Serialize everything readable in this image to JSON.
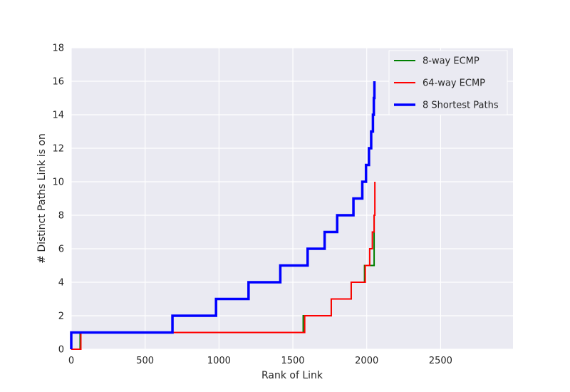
{
  "chart_data": {
    "type": "line",
    "title": "",
    "xlabel": "Rank of Link",
    "ylabel": "# Distinct Paths Link is on",
    "xlim": [
      0,
      2990
    ],
    "ylim": [
      0,
      18
    ],
    "xticks": [
      0,
      500,
      1000,
      1500,
      2000,
      2500
    ],
    "yticks": [
      0,
      2,
      4,
      6,
      8,
      10,
      12,
      14,
      16,
      18
    ],
    "grid": true,
    "legend_position": "top-right",
    "series": [
      {
        "name": "8-way ECMP",
        "color": "#008000",
        "step": true,
        "x": [
          0,
          60,
          60,
          1570,
          1570,
          1760,
          1760,
          1895,
          1895,
          1985,
          1985,
          2050,
          2050
        ],
        "y": [
          0,
          0,
          1,
          1,
          2,
          2,
          3,
          3,
          4,
          4,
          5,
          5,
          8
        ]
      },
      {
        "name": "64-way ECMP",
        "color": "#ff0000",
        "step": true,
        "x": [
          0,
          65,
          65,
          1580,
          1580,
          1760,
          1760,
          1895,
          1895,
          1990,
          1990,
          2020,
          2020,
          2038,
          2038,
          2050,
          2050,
          2055,
          2055
        ],
        "y": [
          0,
          0,
          1,
          1,
          2,
          2,
          3,
          3,
          4,
          4,
          5,
          5,
          6,
          6,
          7,
          7,
          8,
          8,
          10
        ]
      },
      {
        "name": "8 Shortest Paths",
        "color": "#0000ff",
        "step": true,
        "x": [
          0,
          0,
          685,
          685,
          980,
          980,
          1200,
          1200,
          1415,
          1415,
          1600,
          1600,
          1715,
          1715,
          1800,
          1800,
          1910,
          1910,
          1970,
          1970,
          1995,
          1995,
          2015,
          2015,
          2030,
          2030,
          2042,
          2042,
          2048,
          2048,
          2052,
          2052
        ],
        "y": [
          0,
          1,
          1,
          2,
          2,
          3,
          3,
          4,
          4,
          5,
          5,
          6,
          6,
          7,
          7,
          8,
          8,
          9,
          9,
          10,
          10,
          11,
          11,
          12,
          12,
          13,
          13,
          14,
          14,
          15,
          15,
          16
        ]
      }
    ]
  }
}
